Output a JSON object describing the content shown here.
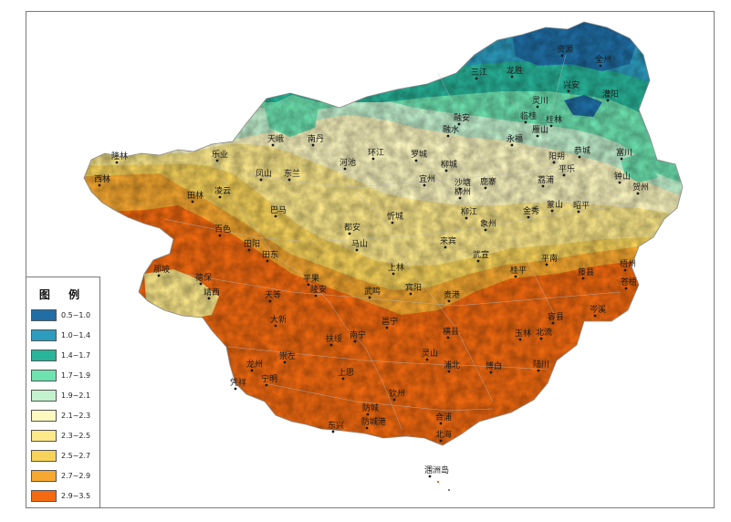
{
  "legend": {
    "title": "图 例",
    "classes": [
      {
        "label": "0.5~1.0",
        "color": "#1f6fa6"
      },
      {
        "label": "1.0~1.4",
        "color": "#2c9cbf"
      },
      {
        "label": "1.4~1.7",
        "color": "#28b59a"
      },
      {
        "label": "1.7~1.9",
        "color": "#6de3b0"
      },
      {
        "label": "1.9~2.1",
        "color": "#c3f2cf"
      },
      {
        "label": "2.1~2.3",
        "color": "#fdf7c0"
      },
      {
        "label": "2.3~2.5",
        "color": "#fde98a"
      },
      {
        "label": "2.5~2.7",
        "color": "#f7d35a"
      },
      {
        "label": "2.7~2.9",
        "color": "#f6a830"
      },
      {
        "label": "2.9~3.5",
        "color": "#f46a10"
      }
    ]
  },
  "cities": [
    {
      "name": "资源"
    },
    {
      "name": "全州"
    },
    {
      "name": "三江"
    },
    {
      "name": "龙胜"
    },
    {
      "name": "兴安"
    },
    {
      "name": "灌阳"
    },
    {
      "name": "融安"
    },
    {
      "name": "融水"
    },
    {
      "name": "灵川"
    },
    {
      "name": "临桂"
    },
    {
      "name": "桂林"
    },
    {
      "name": "雁山"
    },
    {
      "name": "永福"
    },
    {
      "name": "阳朔"
    },
    {
      "name": "恭城"
    },
    {
      "name": "富川"
    },
    {
      "name": "平乐"
    },
    {
      "name": "钟山"
    },
    {
      "name": "贺州"
    },
    {
      "name": "昭平"
    },
    {
      "name": "荔浦"
    },
    {
      "name": "蒙山"
    },
    {
      "name": "金秀"
    },
    {
      "name": "天峨"
    },
    {
      "name": "南丹"
    },
    {
      "name": "环江"
    },
    {
      "name": "罗城"
    },
    {
      "name": "乐业"
    },
    {
      "name": "凤山"
    },
    {
      "name": "东兰"
    },
    {
      "name": "河池"
    },
    {
      "name": "宜州"
    },
    {
      "name": "柳城"
    },
    {
      "name": "沙塘"
    },
    {
      "name": "柳州"
    },
    {
      "name": "鹿寨"
    },
    {
      "name": "柳江"
    },
    {
      "name": "象州"
    },
    {
      "name": "隆林"
    },
    {
      "name": "西林"
    },
    {
      "name": "田林"
    },
    {
      "name": "凌云"
    },
    {
      "name": "巴马"
    },
    {
      "name": "都安"
    },
    {
      "name": "忻城"
    },
    {
      "name": "百色"
    },
    {
      "name": "田阳"
    },
    {
      "name": "田东"
    },
    {
      "name": "马山"
    },
    {
      "name": "来宾"
    },
    {
      "name": "武宣"
    },
    {
      "name": "平南"
    },
    {
      "name": "藤县"
    },
    {
      "name": "梧州"
    },
    {
      "name": "苍梧"
    },
    {
      "name": "桂平"
    },
    {
      "name": "那坡"
    },
    {
      "name": "德保"
    },
    {
      "name": "靖西"
    },
    {
      "name": "天等"
    },
    {
      "name": "平果"
    },
    {
      "name": "隆安"
    },
    {
      "name": "武鸣"
    },
    {
      "name": "上林"
    },
    {
      "name": "宾阳"
    },
    {
      "name": "贵港"
    },
    {
      "name": "容县"
    },
    {
      "name": "岑溪"
    },
    {
      "name": "大新"
    },
    {
      "name": "邕宁"
    },
    {
      "name": "扶绥"
    },
    {
      "name": "南宁"
    },
    {
      "name": "横县"
    },
    {
      "name": "玉林"
    },
    {
      "name": "北流"
    },
    {
      "name": "龙州"
    },
    {
      "name": "崇左"
    },
    {
      "name": "灵山"
    },
    {
      "name": "浦北"
    },
    {
      "name": "博白"
    },
    {
      "name": "陆川"
    },
    {
      "name": "凭祥"
    },
    {
      "name": "宁明"
    },
    {
      "name": "上思"
    },
    {
      "name": "钦州"
    },
    {
      "name": "防城"
    },
    {
      "name": "东兴"
    },
    {
      "name": "防城港"
    },
    {
      "name": "合浦"
    },
    {
      "name": "北海"
    },
    {
      "name": "涠洲岛"
    }
  ]
}
